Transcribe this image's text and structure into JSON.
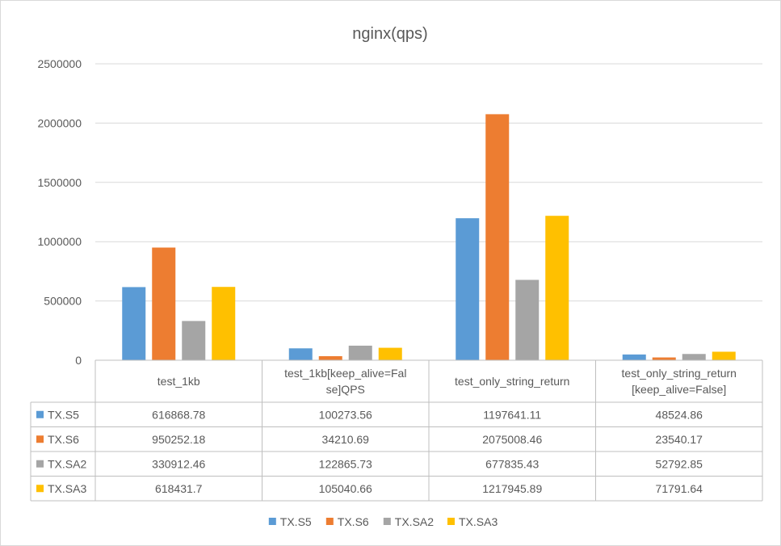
{
  "chart_data": {
    "type": "bar",
    "title": "nginx(qps)",
    "categories": [
      [
        "test_1kb"
      ],
      [
        "test_1kb[keep_alive=Fal",
        "se]QPS"
      ],
      [
        "test_only_string_return"
      ],
      [
        "test_only_string_return",
        "[keep_alive=False]"
      ]
    ],
    "series": [
      {
        "name": "TX.S5",
        "color": "#5b9bd5",
        "values": [
          616868.78,
          100273.56,
          1197641.11,
          48524.86
        ],
        "labels": [
          "616868.78",
          "100273.56",
          "1197641.11",
          "48524.86"
        ]
      },
      {
        "name": "TX.S6",
        "color": "#ed7d31",
        "values": [
          950252.18,
          34210.69,
          2075008.46,
          23540.17
        ],
        "labels": [
          "950252.18",
          "34210.69",
          "2075008.46",
          "23540.17"
        ]
      },
      {
        "name": "TX.SA2",
        "color": "#a5a5a5",
        "values": [
          330912.46,
          122865.73,
          677835.43,
          52792.85
        ],
        "labels": [
          "330912.46",
          "122865.73",
          "677835.43",
          "52792.85"
        ]
      },
      {
        "name": "TX.SA3",
        "color": "#ffc000",
        "values": [
          618431.7,
          105040.66,
          1217945.89,
          71791.64
        ],
        "labels": [
          "618431.7",
          "105040.66",
          "1217945.89",
          "71791.64"
        ]
      }
    ],
    "ylim": [
      0,
      2500000
    ],
    "yticks": [
      "0",
      "500000",
      "1000000",
      "1500000",
      "2000000",
      "2500000"
    ],
    "ytick_values": [
      0,
      500000,
      1000000,
      1500000,
      2000000,
      2500000
    ],
    "grid": true,
    "legend": "bottom",
    "data_table": true
  }
}
